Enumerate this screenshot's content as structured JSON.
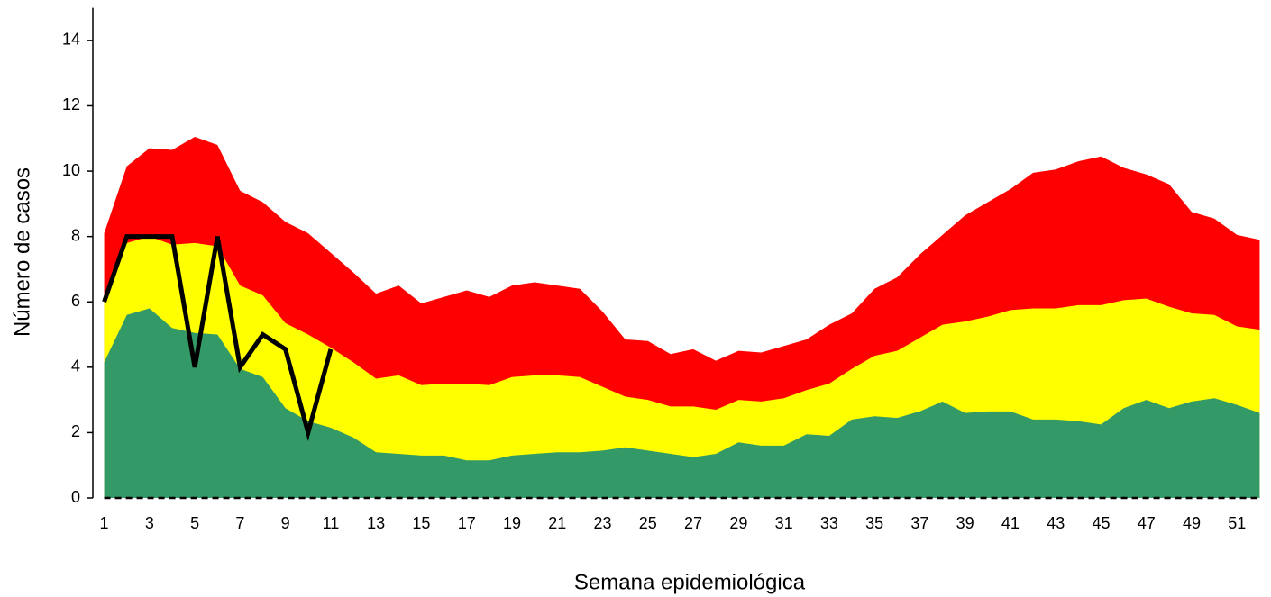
{
  "chart_data": {
    "type": "area",
    "x_label": "Semana epidemiológica",
    "y_label": "Número de casos",
    "categories": [
      1,
      null,
      3,
      null,
      5,
      null,
      7,
      null,
      9,
      null,
      11,
      null,
      13,
      null,
      15,
      null,
      17,
      null,
      19,
      null,
      21,
      null,
      23,
      null,
      25,
      null,
      27,
      null,
      29,
      null,
      31,
      null,
      33,
      null,
      35,
      null,
      37,
      null,
      39,
      null,
      41,
      null,
      43,
      null,
      45,
      null,
      47,
      null,
      49,
      null,
      51,
      null
    ],
    "ylim": [
      0,
      15
    ],
    "yticks": [
      0,
      2,
      4,
      6,
      8,
      10,
      12,
      14
    ],
    "grid": false,
    "series": [
      {
        "color": "#ff0000",
        "style": "filled",
        "values": [
          8.1,
          10.15,
          10.7,
          10.65,
          11.05,
          10.8,
          9.4,
          9.05,
          8.45,
          8.1,
          7.5,
          6.9,
          6.25,
          6.5,
          5.95,
          6.15,
          6.35,
          6.15,
          6.5,
          6.6,
          6.5,
          6.4,
          5.7,
          4.85,
          4.8,
          4.4,
          4.55,
          4.2,
          4.5,
          4.45,
          4.65,
          4.85,
          5.3,
          5.65,
          6.4,
          6.75,
          7.45,
          8.05,
          8.65,
          9.05,
          9.45,
          9.95,
          10.05,
          10.3,
          10.45,
          10.1,
          9.9,
          9.6,
          8.75,
          8.55,
          8.05,
          7.9
        ]
      },
      {
        "color": "#ffff00",
        "style": "filled",
        "values": [
          6.1,
          7.8,
          8.0,
          7.75,
          7.8,
          7.7,
          6.5,
          6.2,
          5.35,
          5.0,
          4.6,
          4.15,
          3.65,
          3.75,
          3.45,
          3.5,
          3.5,
          3.45,
          3.7,
          3.75,
          3.75,
          3.7,
          3.4,
          3.1,
          3.0,
          2.8,
          2.8,
          2.7,
          3.0,
          2.95,
          3.05,
          3.3,
          3.5,
          3.95,
          4.35,
          4.5,
          4.9,
          5.3,
          5.4,
          5.55,
          5.75,
          5.8,
          5.8,
          5.9,
          5.9,
          6.05,
          6.1,
          5.85,
          5.65,
          5.6,
          5.25,
          5.15
        ]
      },
      {
        "color": "#339966",
        "style": "filled",
        "values": [
          4.15,
          5.6,
          5.8,
          5.2,
          5.05,
          5.0,
          3.95,
          3.7,
          2.75,
          2.35,
          2.15,
          1.85,
          1.4,
          1.35,
          1.3,
          1.3,
          1.15,
          1.15,
          1.3,
          1.35,
          1.4,
          1.4,
          1.45,
          1.55,
          1.45,
          1.35,
          1.25,
          1.35,
          1.7,
          1.6,
          1.6,
          1.95,
          1.9,
          2.4,
          2.5,
          2.45,
          2.65,
          2.95,
          2.6,
          2.65,
          2.65,
          2.4,
          2.4,
          2.35,
          2.25,
          2.75,
          3.0,
          2.75,
          2.95,
          3.05,
          2.85,
          2.6
        ]
      },
      {
        "color": "#000000",
        "style": "dashed",
        "values": [
          0,
          0,
          0,
          0,
          0,
          0,
          0,
          0,
          0,
          0,
          0,
          0,
          0,
          0,
          0,
          0,
          0,
          0,
          0,
          0,
          0,
          0,
          0,
          0,
          0,
          0,
          0,
          0,
          0,
          0,
          0,
          0,
          0,
          0,
          0,
          0,
          0,
          0,
          0,
          0,
          0,
          0,
          0,
          0,
          0,
          0,
          0,
          0,
          0,
          0,
          0,
          0
        ]
      },
      {
        "color": "#000000",
        "style": "solid",
        "values": [
          6,
          8,
          8,
          8,
          4,
          8,
          4,
          5,
          4.55,
          2,
          4.55,
          null,
          null,
          null,
          null,
          null,
          null,
          null,
          null,
          null,
          null,
          null,
          null,
          null,
          null,
          null,
          null,
          null,
          null,
          null,
          null,
          null,
          null,
          null,
          null,
          null,
          null,
          null,
          null,
          null,
          null,
          null,
          null,
          null,
          null,
          null,
          null,
          null,
          null,
          null,
          null,
          null
        ]
      }
    ]
  }
}
